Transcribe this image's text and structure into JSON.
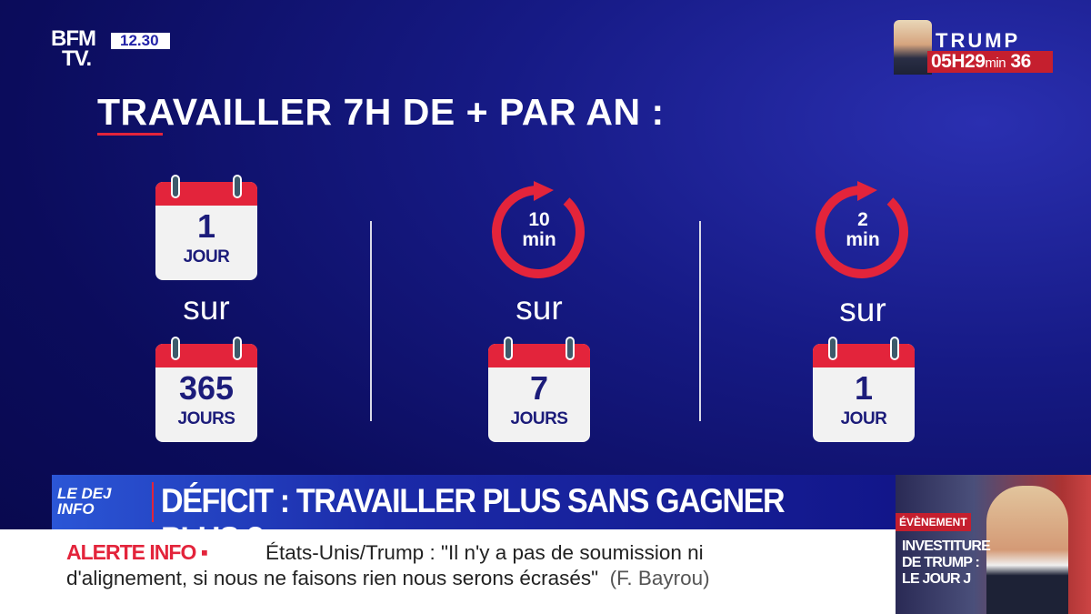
{
  "channel": {
    "logo_line1": "BFM",
    "logo_line2": "TV.",
    "time": "12.30"
  },
  "countdown": {
    "name": "TRUMP",
    "hours": "05H",
    "minutes": "29",
    "min_label": "min",
    "seconds": "36"
  },
  "title": "TRAVAILLER 7H DE + PAR AN :",
  "columns": [
    {
      "top": {
        "type": "calendar",
        "number": "1",
        "unit": "JOUR"
      },
      "connector": "sur",
      "bottom": {
        "number": "365",
        "unit": "JOURS"
      }
    },
    {
      "top": {
        "type": "clock",
        "number": "10",
        "unit": "min"
      },
      "connector": "sur",
      "bottom": {
        "number": "7",
        "unit": "JOURS"
      }
    },
    {
      "top": {
        "type": "clock",
        "number": "2",
        "unit": "min"
      },
      "connector": "sur",
      "bottom": {
        "number": "1",
        "unit": "JOUR"
      }
    }
  ],
  "banner": {
    "program_logo": "LE DEJ INFO",
    "headline": "DÉFICIT : TRAVAILLER PLUS SANS GAGNER PLUS ?"
  },
  "ticker": {
    "label": "ALERTE INFO ▪",
    "line1": "États-Unis/Trump : \"Il n'y a pas de soumission ni",
    "line2": "d'alignement, si nous ne faisons rien nous serons écrasés\"",
    "source": "(F. Bayrou)"
  },
  "side_panel": {
    "tag": "ÉVÈNEMENT",
    "title": "INVESTITURE DE TRUMP : LE JOUR J"
  },
  "colors": {
    "background": "#0b0b55",
    "accent_red": "#e3243b",
    "calendar_text": "#1c1c7a"
  }
}
